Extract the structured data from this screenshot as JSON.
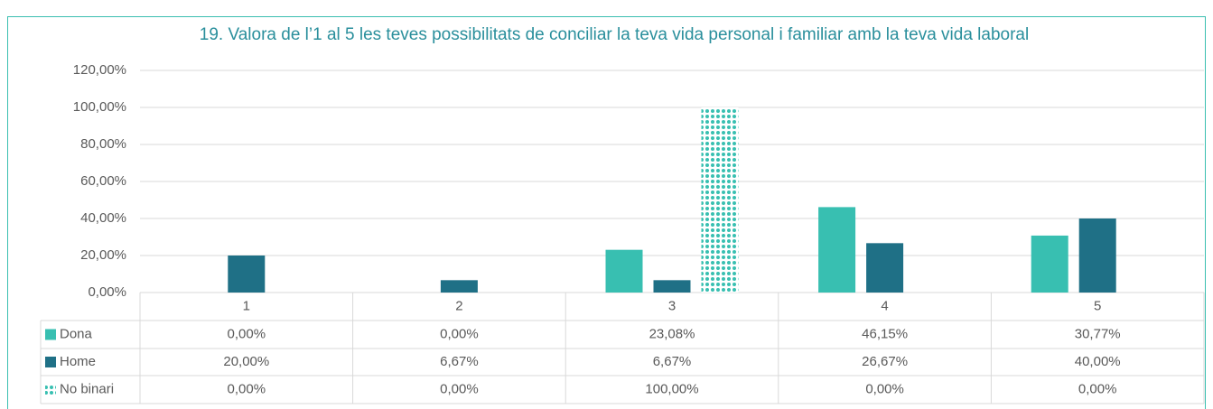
{
  "chart_data": {
    "type": "bar",
    "title": "19. Valora de l’1 al 5 les teves possibilitats de conciliar la teva vida personal i familiar amb la teva vida laboral",
    "categories": [
      "1",
      "2",
      "3",
      "4",
      "5"
    ],
    "series": [
      {
        "name": "Dona",
        "color": "#38bfb1",
        "values": [
          0,
          0,
          23.08,
          46.15,
          30.77
        ],
        "value_labels": [
          "0,00%",
          "0,00%",
          "23,08%",
          "46,15%",
          "30,77%"
        ]
      },
      {
        "name": "Home",
        "color": "#1f7086",
        "values": [
          20,
          6.67,
          6.67,
          26.67,
          40
        ],
        "value_labels": [
          "20,00%",
          "6,67%",
          "6,67%",
          "26,67%",
          "40,00%"
        ]
      },
      {
        "name": "No binari",
        "color": "#38bfb1",
        "pattern": "dots",
        "values": [
          0,
          0,
          100,
          0,
          0
        ],
        "value_labels": [
          "0,00%",
          "0,00%",
          "100,00%",
          "0,00%",
          "0,00%"
        ]
      }
    ],
    "ylim": [
      0,
      120
    ],
    "yticks": [
      {
        "value": 0,
        "label": "0,00%"
      },
      {
        "value": 20,
        "label": "20,00%"
      },
      {
        "value": 40,
        "label": "40,00%"
      },
      {
        "value": 60,
        "label": "60,00%"
      },
      {
        "value": 80,
        "label": "80,00%"
      },
      {
        "value": 100,
        "label": "100,00%"
      },
      {
        "value": 120,
        "label": "120,00%"
      }
    ],
    "grid": true,
    "data_table": true
  }
}
